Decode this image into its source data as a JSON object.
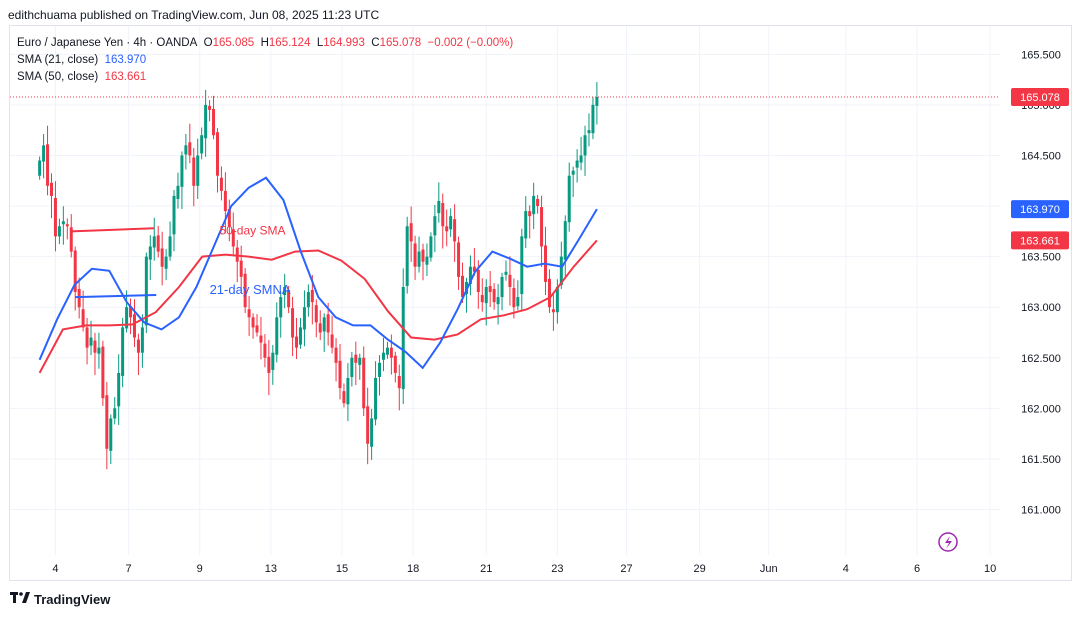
{
  "header": {
    "publisher_line": "edithchuama published on TradingView.com, Jun 08, 2025 11:23 UTC"
  },
  "legend": {
    "symbol": "Euro / Japanese Yen · 4h · OANDA",
    "o_label": "O",
    "o_value": "165.085",
    "h_label": "H",
    "h_value": "165.124",
    "l_label": "L",
    "l_value": "164.993",
    "c_label": "C",
    "c_value": "165.078",
    "change": "−0.002 (−0.00%)",
    "sma21_label": "SMA (21, close)",
    "sma21_value": "163.970",
    "sma50_label": "SMA (50, close)",
    "sma50_value": "163.661"
  },
  "annotations": {
    "sma50_text": "50-day SMA",
    "sma21_text": "21-day SMNA"
  },
  "price_tags": {
    "last": "165.078",
    "sma21": "163.970",
    "sma50": "163.661"
  },
  "footer": {
    "brand": "TradingView",
    "logo_icon": "tradingview-logo-icon"
  },
  "colors": {
    "up": "#089981",
    "down": "#f23645",
    "sma21": "#2962ff",
    "sma50": "#f23645",
    "grid": "#f0f3fa",
    "text": "#131722"
  },
  "chart_data": {
    "type": "candlestick",
    "symbol": "EUR/JPY",
    "interval": "4h",
    "y_ticks": [
      165.5,
      165.0,
      164.5,
      164.0,
      163.5,
      163.0,
      162.5,
      162.0,
      161.5,
      161.0
    ],
    "y_tick_labels": [
      "165.500",
      "165.000",
      "164.500",
      "164.000",
      "163.500",
      "163.000",
      "162.500",
      "162.000",
      "161.500",
      "161.000"
    ],
    "ylim": [
      160.55,
      165.78
    ],
    "x_tick_labels": [
      "4",
      "7",
      "9",
      "13",
      "15",
      "18",
      "21",
      "23",
      "27",
      "29",
      "Jun",
      "4",
      "6",
      "10"
    ],
    "x_tick_positions": [
      4,
      22.5,
      40.5,
      58.5,
      76.5,
      94.5,
      113,
      131,
      148.5,
      167,
      184.5,
      204,
      222,
      240.5
    ],
    "xlim": [
      -7.5,
      243
    ],
    "last_price": 165.078,
    "closes": [
      164.45,
      164.6,
      164.2,
      164.1,
      163.7,
      163.8,
      163.85,
      163.8,
      163.55,
      163.15,
      163.0,
      162.8,
      162.6,
      162.7,
      162.55,
      162.6,
      162.1,
      161.6,
      161.9,
      162.0,
      162.35,
      162.8,
      163.0,
      162.9,
      162.7,
      162.55,
      162.8,
      163.5,
      163.6,
      163.7,
      163.55,
      163.4,
      163.5,
      163.7,
      164.1,
      164.2,
      164.5,
      164.6,
      164.5,
      164.2,
      164.5,
      164.7,
      165.0,
      164.95,
      164.7,
      164.3,
      164.15,
      163.95,
      163.8,
      163.6,
      163.45,
      163.3,
      163.0,
      162.9,
      162.8,
      162.75,
      162.65,
      162.5,
      162.35,
      162.55,
      162.9,
      163.1,
      163.2,
      163.0,
      162.7,
      162.6,
      162.8,
      163.0,
      163.15,
      163.05,
      162.85,
      162.75,
      162.9,
      162.75,
      162.6,
      162.45,
      162.2,
      162.05,
      162.3,
      162.5,
      162.45,
      162.5,
      162.0,
      161.65,
      161.9,
      162.3,
      162.45,
      162.55,
      162.6,
      162.5,
      162.35,
      162.2,
      163.2,
      163.8,
      163.65,
      163.4,
      163.55,
      163.45,
      163.5,
      163.7,
      163.9,
      164.05,
      163.8,
      163.75,
      163.9,
      163.65,
      163.3,
      163.1,
      163.25,
      163.4,
      163.35,
      163.15,
      163.05,
      163.2,
      163.15,
      163.05,
      163.1,
      163.3,
      163.35,
      163.2,
      163.0,
      163.1,
      163.7,
      163.95,
      163.9,
      164.1,
      164.0,
      163.6,
      163.25,
      163.0,
      162.95,
      163.2,
      163.5,
      163.85,
      164.3,
      164.35,
      164.45,
      164.5,
      164.7,
      164.75,
      165.0,
      165.078
    ],
    "sma21_approx": [
      162.48,
      162.88,
      163.22,
      163.38,
      163.36,
      163.05,
      162.85,
      162.78,
      162.9,
      163.2,
      163.6,
      164.0,
      164.18,
      164.28,
      164.06,
      163.55,
      163.1,
      162.9,
      162.82,
      162.82,
      162.68,
      162.56,
      162.4,
      162.65,
      162.98,
      163.35,
      163.55,
      163.48,
      163.4,
      163.43,
      163.4,
      163.68,
      163.97
    ],
    "sma50_approx": [
      162.35,
      162.78,
      162.82,
      162.82,
      162.83,
      162.95,
      163.2,
      163.5,
      163.52,
      163.5,
      163.47,
      163.55,
      163.56,
      163.46,
      163.28,
      162.96,
      162.7,
      162.68,
      162.73,
      162.88,
      162.92,
      162.98,
      163.1,
      163.4,
      163.66
    ]
  }
}
